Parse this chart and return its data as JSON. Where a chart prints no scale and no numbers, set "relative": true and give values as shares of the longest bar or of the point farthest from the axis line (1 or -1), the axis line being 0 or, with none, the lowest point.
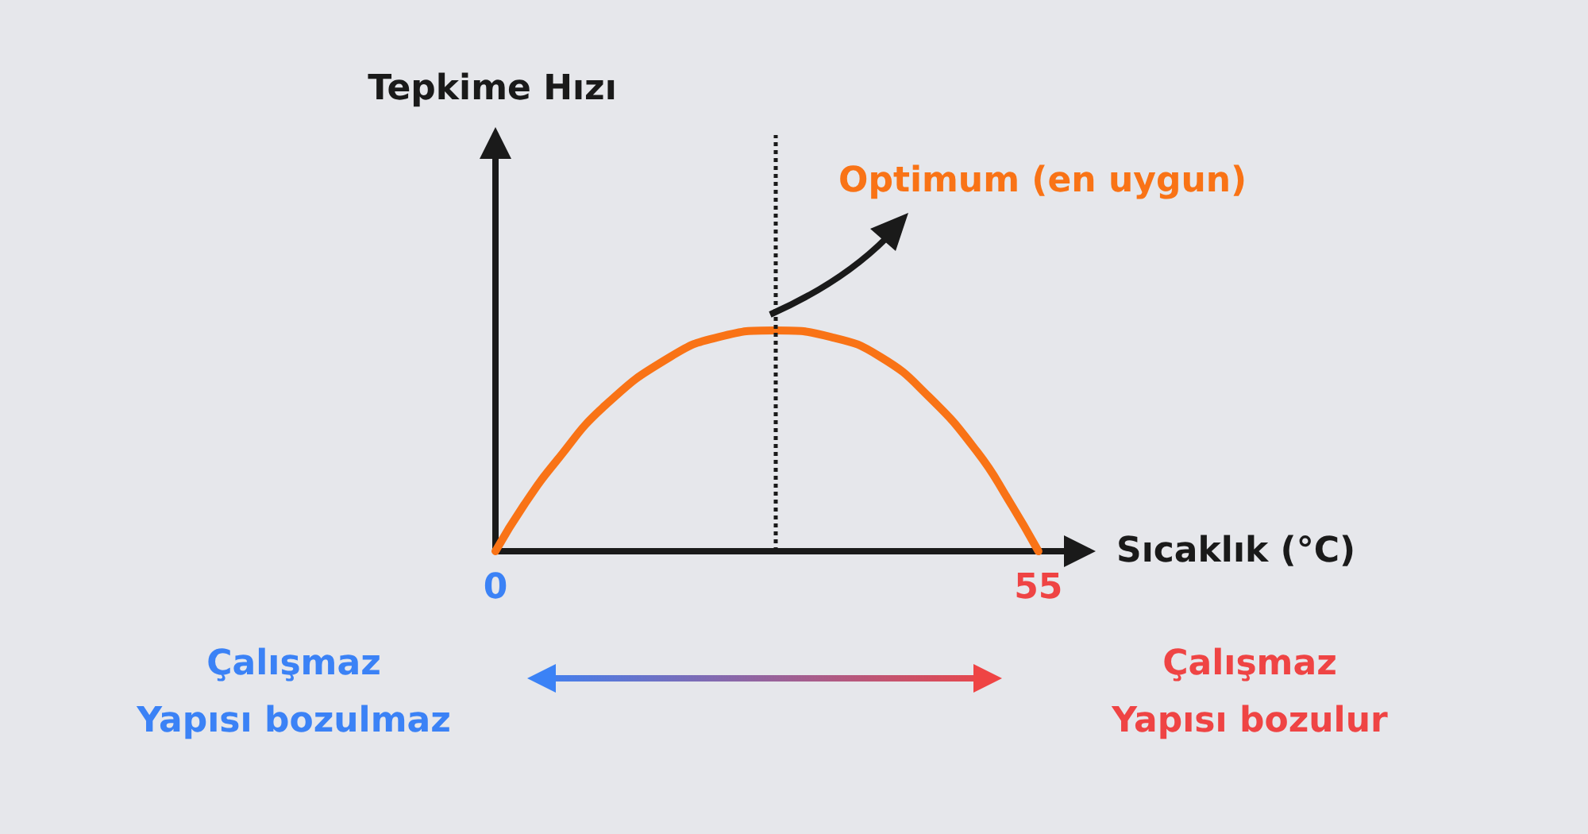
{
  "chart_data": {
    "type": "line",
    "relative": true,
    "xlabel": "Sıcaklık (°C)",
    "x": [
      0,
      2.9,
      6.2,
      11.1,
      17.7,
      22.6,
      28.3,
      34,
      39,
      43.9,
      48.8,
      52,
      55
    ],
    "series": [
      {
        "color": "#f97316",
        "values": [
          0,
          0.21,
          0.41,
          0.66,
          0.88,
          0.97,
          1,
          0.97,
          0.88,
          0.7,
          0.45,
          0.23,
          0
        ]
      }
    ],
    "xlim": [
      0,
      60
    ],
    "xticks": [
      0,
      55
    ],
    "ref_lines": [
      {
        "axis": "x",
        "value": 28.3,
        "color": "#1a1a1a",
        "line_style": "dotted"
      }
    ],
    "annotations": [
      "Tepkime Hızı",
      "Optimum (en uygun)",
      "Çalışmaz\nYapısı bozulmaz",
      "Çalışmaz\nYapısı bozulur"
    ],
    "marker": "none",
    "line_style": "solid"
  }
}
